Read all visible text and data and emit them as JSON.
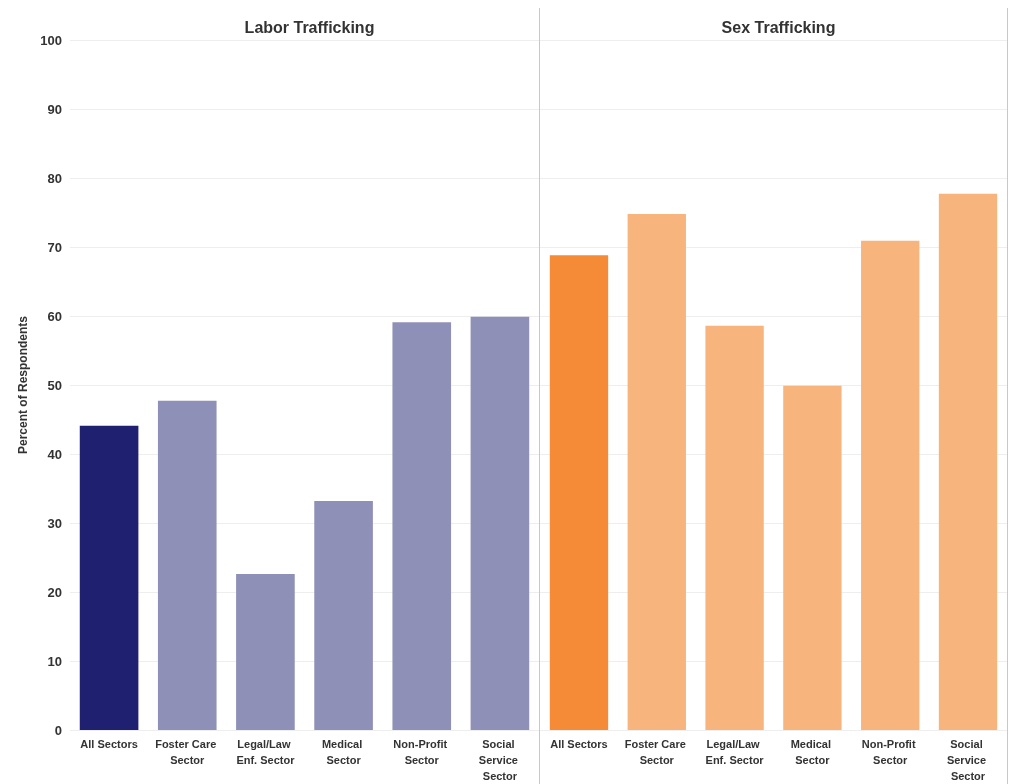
{
  "chart_data": [
    {
      "type": "bar",
      "title": "Labor Trafficking",
      "ylabel": "Percent of Respondents",
      "categories": [
        "All Sectors",
        "Foster Care Sector",
        "Legal/Law Enf. Sector",
        "Medical Sector",
        "Non-Profit Sector",
        "Social Service Sector"
      ],
      "values": [
        44.1,
        47.7,
        22.6,
        33.2,
        59.1,
        59.9
      ],
      "colors": [
        "#1f2070",
        "#8e90b7",
        "#8e90b7",
        "#8e90b7",
        "#8e90b7",
        "#8e90b7"
      ],
      "ylim": [
        0,
        100
      ],
      "yticks": [
        0,
        10,
        20,
        30,
        40,
        50,
        60,
        70,
        80,
        90,
        100
      ],
      "grid": "y"
    },
    {
      "type": "bar",
      "title": "Sex Trafficking",
      "categories": [
        "All Sectors",
        "Foster Care Sector",
        "Legal/Law Enf. Sector",
        "Medical Sector",
        "Non-Profit Sector",
        "Social Service Sector"
      ],
      "values": [
        68.8,
        74.8,
        58.6,
        49.9,
        70.9,
        77.7
      ],
      "colors": [
        "#f58b37",
        "#f8b47d",
        "#f8b47d",
        "#f8b47d",
        "#f8b47d",
        "#f8b47d"
      ],
      "ylim": [
        0,
        100
      ],
      "yticks": [
        0,
        10,
        20,
        30,
        40,
        50,
        60,
        70,
        80,
        90,
        100
      ],
      "grid": "y",
      "tick_labels": "x"
    }
  ]
}
